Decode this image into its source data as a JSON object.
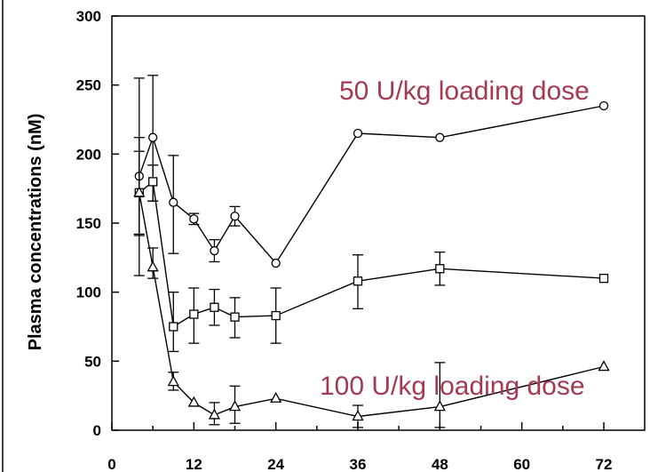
{
  "chart_data": {
    "type": "line",
    "ylabel": "Plasma concentrations (nM)",
    "xlabel": "",
    "xlim": [
      0,
      78
    ],
    "ylim": [
      0,
      300
    ],
    "x_ticks": [
      "0",
      "12",
      "24",
      "36",
      "48",
      "60",
      "72"
    ],
    "y_ticks": [
      "0",
      "50",
      "100",
      "150",
      "200",
      "250",
      "300"
    ],
    "grid": false,
    "series": [
      {
        "marker": "circle",
        "points": [
          {
            "x": 4,
            "y": 184,
            "lo": 112,
            "hi": 255
          },
          {
            "x": 6,
            "y": 212,
            "lo": 166,
            "hi": 257
          },
          {
            "x": 9,
            "y": 165,
            "lo": 128,
            "hi": 199
          },
          {
            "x": 12,
            "y": 153,
            "lo": 149,
            "hi": 157
          },
          {
            "x": 15,
            "y": 130,
            "lo": 122,
            "hi": 138
          },
          {
            "x": 18,
            "y": 155,
            "lo": 148,
            "hi": 162
          },
          {
            "x": 24,
            "y": 121
          },
          {
            "x": 36,
            "y": 215
          },
          {
            "x": 48,
            "y": 212
          },
          {
            "x": 72,
            "y": 235
          }
        ]
      },
      {
        "marker": "square",
        "points": [
          {
            "x": 4,
            "y": 172,
            "lo": 142,
            "hi": 212
          },
          {
            "x": 6,
            "y": 180,
            "lo": 166,
            "hi": 192
          },
          {
            "x": 9,
            "y": 75,
            "lo": 57,
            "hi": 100
          },
          {
            "x": 12,
            "y": 84,
            "lo": 63,
            "hi": 103
          },
          {
            "x": 15,
            "y": 89,
            "lo": 76,
            "hi": 102
          },
          {
            "x": 18,
            "y": 82,
            "lo": 67,
            "hi": 96
          },
          {
            "x": 24,
            "y": 83,
            "lo": 63,
            "hi": 103
          },
          {
            "x": 36,
            "y": 108,
            "lo": 88,
            "hi": 127
          },
          {
            "x": 48,
            "y": 117,
            "lo": 105,
            "hi": 129
          },
          {
            "x": 72,
            "y": 110
          }
        ]
      },
      {
        "marker": "triangle",
        "points": [
          {
            "x": 4,
            "y": 172,
            "lo": 141,
            "hi": 202
          },
          {
            "x": 6,
            "y": 118,
            "lo": 110,
            "hi": 132
          },
          {
            "x": 9,
            "y": 35,
            "lo": 29,
            "hi": 42
          },
          {
            "x": 12,
            "y": 20
          },
          {
            "x": 15,
            "y": 11,
            "lo": 4,
            "hi": 20
          },
          {
            "x": 18,
            "y": 17,
            "lo": 5,
            "hi": 32
          },
          {
            "x": 24,
            "y": 23
          },
          {
            "x": 36,
            "y": 10,
            "lo": 2,
            "hi": 18
          },
          {
            "x": 48,
            "y": 17,
            "lo": 2,
            "hi": 49
          },
          {
            "x": 72,
            "y": 46
          }
        ]
      }
    ],
    "annotations": [
      {
        "text": "50 U/kg loading dose"
      },
      {
        "text": "100 U/kg loading dose"
      }
    ],
    "colors": {
      "annotation": "#a33a52",
      "line": "#000000"
    }
  }
}
